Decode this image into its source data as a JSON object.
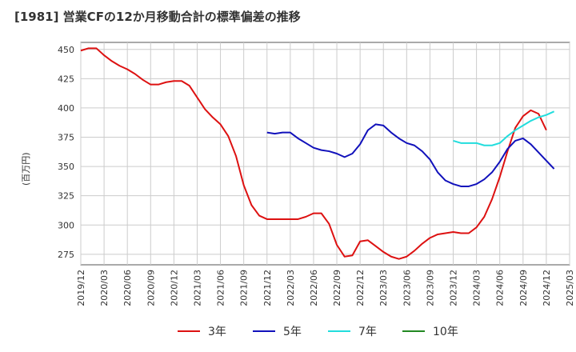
{
  "chart_data": {
    "type": "line",
    "title": "[1981]  営業CFの12か月移動合計の標準偏差の推移",
    "ylabel": "(百万円)",
    "xlabel": "",
    "ylim": [
      266,
      456
    ],
    "yticks": [
      275,
      300,
      325,
      350,
      375,
      400,
      425,
      450
    ],
    "xticks": [
      "2019/12",
      "2020/03",
      "2020/06",
      "2020/09",
      "2020/12",
      "2021/03",
      "2021/06",
      "2021/09",
      "2021/12",
      "2022/03",
      "2022/06",
      "2022/09",
      "2022/12",
      "2023/03",
      "2023/06",
      "2023/09",
      "2023/12",
      "2024/03",
      "2024/06",
      "2024/09",
      "2024/12",
      "2025/03"
    ],
    "grid": true,
    "legend_position": "bottom",
    "series": [
      {
        "name": "3年",
        "color": "#dd1111",
        "start": "2019/12",
        "values": [
          449,
          451,
          451,
          445,
          440,
          436,
          433,
          429,
          424,
          420,
          420,
          422,
          423,
          423,
          419,
          409,
          399,
          392,
          386,
          376,
          359,
          334,
          317,
          308,
          305,
          305,
          305,
          305,
          305,
          307,
          310,
          310,
          301,
          283,
          273,
          274,
          286,
          287,
          282,
          277,
          273,
          271,
          273,
          278,
          284,
          289,
          292,
          293,
          294,
          293,
          293,
          298,
          307,
          322,
          341,
          363,
          383,
          393,
          398,
          395,
          381
        ]
      },
      {
        "name": "5年",
        "color": "#1111bb",
        "start": "2021/12",
        "values": [
          379,
          378,
          379,
          379,
          374,
          370,
          366,
          364,
          363,
          361,
          358,
          361,
          369,
          381,
          386,
          385,
          379,
          374,
          370,
          368,
          363,
          356,
          345,
          338,
          335,
          333,
          333,
          335,
          339,
          345,
          354,
          365,
          372,
          374,
          369,
          362,
          355,
          348
        ]
      },
      {
        "name": "7年",
        "color": "#22dddd",
        "start": "2023/12",
        "values": [
          372,
          370,
          370,
          370,
          368,
          368,
          370,
          376,
          381,
          385,
          389,
          392,
          394,
          397
        ]
      },
      {
        "name": "10年",
        "color": "#228822",
        "start": "",
        "values": []
      }
    ]
  }
}
